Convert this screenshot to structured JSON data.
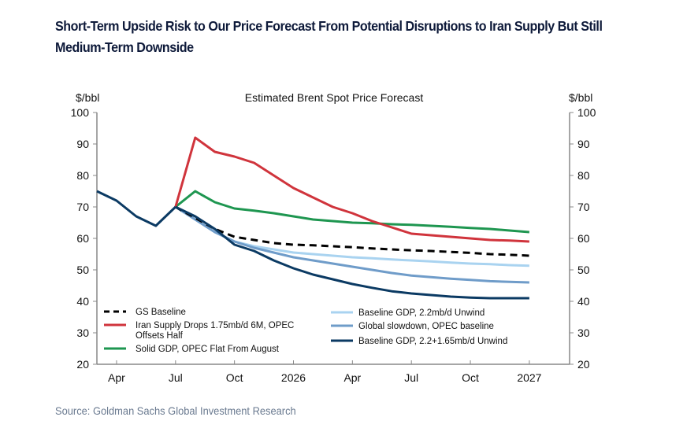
{
  "title_line1": "Short-Term Upside Risk to Our Price Forecast From Potential Disruptions to Iran Supply But Still",
  "title_line2": "Medium-Term Downside",
  "source": "Source: Goldman Sachs Global Investment Research",
  "chart_data": {
    "type": "line",
    "title": "Estimated Brent Spot Price Forecast",
    "ylabel_left": "$/bbl",
    "ylabel_right": "$/bbl",
    "ylim": [
      20,
      100
    ],
    "yticks": [
      20,
      30,
      40,
      50,
      60,
      70,
      80,
      90,
      100
    ],
    "x_months": [
      "Mar 2025",
      "Apr 2025",
      "May 2025",
      "Jun 2025",
      "Jul 2025",
      "Aug 2025",
      "Sep 2025",
      "Oct 2025",
      "Nov 2025",
      "Dec 2025",
      "Jan 2026",
      "Feb 2026",
      "Mar 2026",
      "Apr 2026",
      "May 2026",
      "Jun 2026",
      "Jul 2026",
      "Aug 2026",
      "Sep 2026",
      "Oct 2026",
      "Nov 2026",
      "Dec 2026",
      "Jan 2027"
    ],
    "xtick_labels": [
      {
        "i": 1,
        "label": "Apr"
      },
      {
        "i": 4,
        "label": "Jul"
      },
      {
        "i": 7,
        "label": "Oct"
      },
      {
        "i": 10,
        "label": "2026"
      },
      {
        "i": 13,
        "label": "Apr"
      },
      {
        "i": 16,
        "label": "Jul"
      },
      {
        "i": 19,
        "label": "Oct"
      },
      {
        "i": 22,
        "label": "2027"
      }
    ],
    "history": {
      "start": 0,
      "values": [
        75,
        72,
        67,
        64,
        70
      ],
      "color": "#0b3a63"
    },
    "series": [
      {
        "name": "GS Baseline",
        "color": "#000000",
        "dashed": true,
        "start": 4,
        "values": [
          70,
          66.5,
          63,
          60.5,
          59.5,
          58.5,
          58,
          57.8,
          57.5,
          57.2,
          56.8,
          56.5,
          56.2,
          56,
          55.7,
          55.4,
          55,
          54.8,
          54.5
        ]
      },
      {
        "name": "Iran Supply Drops 1.75mb/d 6M, OPEC Offsets Half",
        "name_lines": [
          "Iran Supply Drops 1.75mb/d 6M, OPEC",
          "Offsets Half"
        ],
        "color": "#d0343c",
        "start": 4,
        "values": [
          70,
          92,
          87.5,
          86,
          84,
          80,
          76,
          73,
          70,
          68,
          65.5,
          63.5,
          61.5,
          61,
          60.5,
          60,
          59.5,
          59.3,
          59
        ]
      },
      {
        "name": "Solid GDP, OPEC Flat From August",
        "color": "#1e9650",
        "start": 4,
        "values": [
          70,
          75,
          71.5,
          69.5,
          68.8,
          68,
          67,
          66,
          65.5,
          65,
          64.8,
          64.5,
          64.3,
          64,
          63.7,
          63.3,
          63,
          62.5,
          62
        ]
      },
      {
        "name": "Baseline GDP, 2.2mb/d Unwind",
        "color": "#a9d3f0",
        "start": 4,
        "values": [
          70,
          66,
          62,
          59,
          57.5,
          56.5,
          55.5,
          55,
          54.5,
          54,
          53.7,
          53.3,
          53,
          52.7,
          52.3,
          52,
          51.8,
          51.5,
          51.3
        ]
      },
      {
        "name": "Global slowdown, OPEC baseline",
        "color": "#6f9cc9",
        "start": 4,
        "values": [
          70,
          66,
          62,
          59,
          57,
          55.5,
          54,
          53,
          52,
          51,
          50,
          49,
          48.2,
          47.7,
          47.2,
          46.8,
          46.4,
          46.2,
          46
        ]
      },
      {
        "name": "Baseline GDP, 2.2+1.65mb/d Unwind",
        "color": "#0b3a63",
        "start": 4,
        "values": [
          70,
          67,
          63,
          58,
          56,
          53,
          50.5,
          48.5,
          47,
          45.5,
          44.3,
          43.2,
          42.5,
          42,
          41.5,
          41.2,
          41,
          41,
          41
        ]
      }
    ],
    "legend": "bottom"
  }
}
